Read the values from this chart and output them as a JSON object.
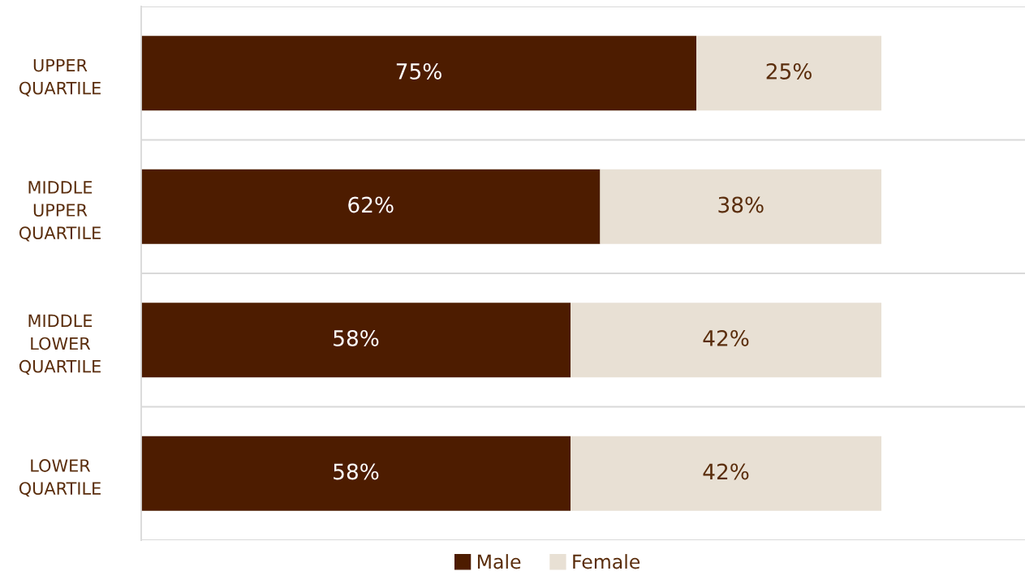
{
  "chart_data": {
    "type": "bar",
    "orientation": "horizontal",
    "stacked": true,
    "categories": [
      "UPPER\nQUARTILE",
      "MIDDLE\nUPPER\nQUARTILE",
      "MIDDLE\nLOWER\nQUARTILE",
      "LOWER\nQUARTILE"
    ],
    "series": [
      {
        "name": "Male",
        "color": "#4d1c00",
        "values": [
          75,
          62,
          58,
          58
        ],
        "value_labels": [
          "75%",
          "62%",
          "58%",
          "58%"
        ]
      },
      {
        "name": "Female",
        "color": "#e8e0d4",
        "values": [
          25,
          38,
          42,
          42
        ],
        "value_labels": [
          "25%",
          "38%",
          "42%",
          "42%"
        ]
      }
    ],
    "xlim": [
      0,
      119.4
    ],
    "tick_labels": "y",
    "grid": "y",
    "legend": "bottom"
  }
}
